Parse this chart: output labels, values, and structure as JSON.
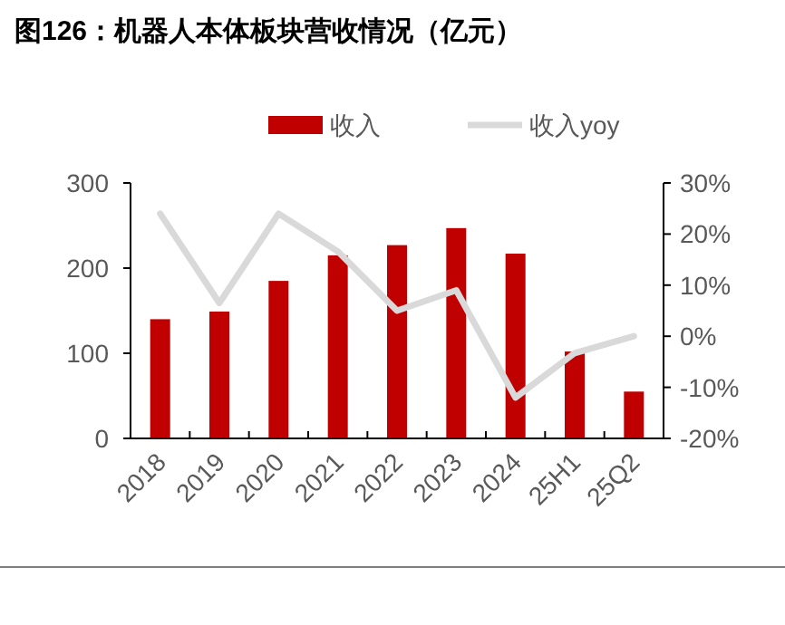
{
  "chart_data": {
    "type": "bar",
    "title": "图126：机器人本体板块营收情况（亿元）",
    "categories": [
      "2018",
      "2019",
      "2020",
      "2021",
      "2022",
      "2023",
      "2024",
      "25H1",
      "25Q2"
    ],
    "series": [
      {
        "name": "收入",
        "color": "#c00000",
        "values": [
          140,
          149,
          185,
          215,
          227,
          247,
          217,
          102,
          55
        ]
      },
      {
        "name": "收入yoy",
        "type": "line",
        "axis": "y2",
        "color": "#d9d9d9",
        "values": [
          24,
          6.5,
          24,
          16.6,
          5,
          9,
          -12,
          -3.3,
          0
        ]
      }
    ],
    "ylim": [
      0,
      300
    ],
    "yticks": [
      0,
      100,
      200,
      300
    ],
    "y2lim": [
      -20,
      30
    ],
    "y2ticks": [
      {
        "value": -20,
        "label": "-20%"
      },
      {
        "value": -10,
        "label": "-10%"
      },
      {
        "value": 0,
        "label": "0%"
      },
      {
        "value": 10,
        "label": "10%"
      },
      {
        "value": 20,
        "label": "20%"
      },
      {
        "value": 30,
        "label": "30%"
      }
    ],
    "legend": "top",
    "grid": false,
    "marker": "none"
  }
}
